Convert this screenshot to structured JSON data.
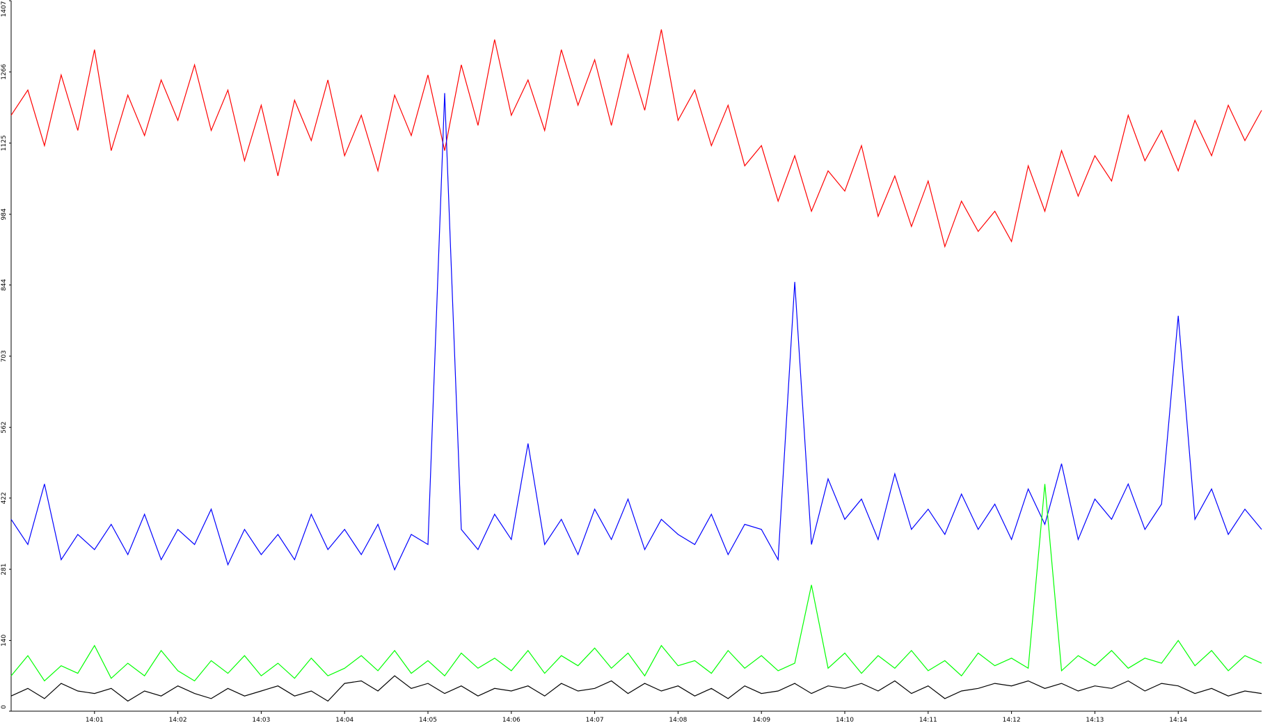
{
  "chart_data": {
    "type": "line",
    "x": [
      0,
      0.2,
      0.4,
      0.6,
      0.8,
      1,
      1.2,
      1.4,
      1.6,
      1.8,
      2,
      2.2,
      2.4,
      2.6,
      2.8,
      3,
      3.2,
      3.4,
      3.6,
      3.8,
      4,
      4.2,
      4.4,
      4.6,
      4.8,
      5,
      5.2,
      5.4,
      5.6,
      5.8,
      6,
      6.2,
      6.4,
      6.6,
      6.8,
      7,
      7.2,
      7.4,
      7.6,
      7.8,
      8,
      8.2,
      8.4,
      8.6,
      8.8,
      9,
      9.2,
      9.4,
      9.6,
      9.8,
      10,
      10.2,
      10.4,
      10.6,
      10.8,
      11,
      11.2,
      11.4,
      11.6,
      11.8,
      12,
      12.2,
      12.4,
      12.6,
      12.8,
      13,
      13.2,
      13.4,
      13.6,
      13.8,
      14,
      14.2,
      14.4,
      14.6,
      14.8,
      15
    ],
    "xlim": [
      0,
      15
    ],
    "xticks": [
      {
        "value": 1,
        "label": "14:01"
      },
      {
        "value": 2,
        "label": "14:02"
      },
      {
        "value": 3,
        "label": "14:03"
      },
      {
        "value": 4,
        "label": "14:04"
      },
      {
        "value": 5,
        "label": "14:05"
      },
      {
        "value": 6,
        "label": "14:06"
      },
      {
        "value": 7,
        "label": "14:07"
      },
      {
        "value": 8,
        "label": "14:08"
      },
      {
        "value": 9,
        "label": "14:09"
      },
      {
        "value": 10,
        "label": "14:10"
      },
      {
        "value": 11,
        "label": "14:11"
      },
      {
        "value": 12,
        "label": "14:12"
      },
      {
        "value": 13,
        "label": "14:13"
      },
      {
        "value": 14,
        "label": "14:14"
      }
    ],
    "ylim": [
      0,
      1407
    ],
    "yticks": [
      0,
      140,
      281,
      422,
      562,
      703,
      844,
      984,
      1125,
      1266,
      1407
    ],
    "series": [
      {
        "color": "#ff0000",
        "values": [
          1180,
          1230,
          1120,
          1260,
          1150,
          1310,
          1110,
          1220,
          1140,
          1250,
          1170,
          1280,
          1150,
          1230,
          1090,
          1200,
          1060,
          1210,
          1130,
          1250,
          1100,
          1180,
          1070,
          1220,
          1140,
          1260,
          1110,
          1280,
          1160,
          1330,
          1180,
          1250,
          1150,
          1310,
          1200,
          1290,
          1160,
          1300,
          1190,
          1350,
          1170,
          1230,
          1120,
          1200,
          1080,
          1120,
          1010,
          1100,
          990,
          1070,
          1030,
          1120,
          980,
          1060,
          960,
          1050,
          920,
          1010,
          950,
          990,
          930,
          1080,
          990,
          1110,
          1020,
          1100,
          1050,
          1180,
          1090,
          1150,
          1070,
          1170,
          1100,
          1200,
          1130,
          1190
        ]
      },
      {
        "color": "#0000ff",
        "values": [
          380,
          330,
          450,
          300,
          350,
          320,
          370,
          310,
          390,
          300,
          360,
          330,
          400,
          290,
          360,
          310,
          350,
          300,
          390,
          320,
          360,
          310,
          370,
          280,
          350,
          330,
          1224,
          360,
          320,
          390,
          340,
          530,
          330,
          380,
          310,
          400,
          340,
          420,
          320,
          380,
          350,
          330,
          390,
          310,
          370,
          360,
          300,
          850,
          330,
          460,
          380,
          420,
          340,
          470,
          360,
          400,
          350,
          430,
          360,
          410,
          340,
          440,
          370,
          490,
          340,
          420,
          380,
          450,
          360,
          410,
          783,
          380,
          440,
          350,
          400,
          360
        ]
      },
      {
        "color": "#00ff00",
        "values": [
          70,
          110,
          60,
          90,
          75,
          130,
          65,
          95,
          70,
          120,
          80,
          60,
          100,
          75,
          110,
          70,
          95,
          65,
          105,
          70,
          85,
          110,
          80,
          120,
          75,
          100,
          70,
          115,
          85,
          105,
          80,
          120,
          75,
          110,
          90,
          125,
          85,
          115,
          70,
          130,
          90,
          100,
          75,
          120,
          85,
          110,
          80,
          95,
          250,
          85,
          115,
          75,
          110,
          85,
          120,
          80,
          100,
          70,
          115,
          90,
          105,
          85,
          450,
          80,
          110,
          90,
          120,
          85,
          105,
          95,
          140,
          90,
          120,
          80,
          110,
          95
        ]
      },
      {
        "color": "#000000",
        "values": [
          30,
          45,
          25,
          55,
          40,
          35,
          45,
          20,
          40,
          30,
          50,
          35,
          25,
          45,
          30,
          40,
          50,
          30,
          40,
          20,
          55,
          60,
          40,
          70,
          45,
          55,
          35,
          50,
          30,
          45,
          40,
          50,
          30,
          55,
          40,
          45,
          60,
          35,
          55,
          40,
          50,
          30,
          45,
          25,
          50,
          35,
          40,
          55,
          35,
          50,
          45,
          55,
          40,
          60,
          35,
          50,
          25,
          40,
          45,
          55,
          50,
          60,
          45,
          55,
          40,
          50,
          45,
          60,
          40,
          55,
          50,
          35,
          45,
          30,
          40,
          35
        ]
      }
    ]
  }
}
